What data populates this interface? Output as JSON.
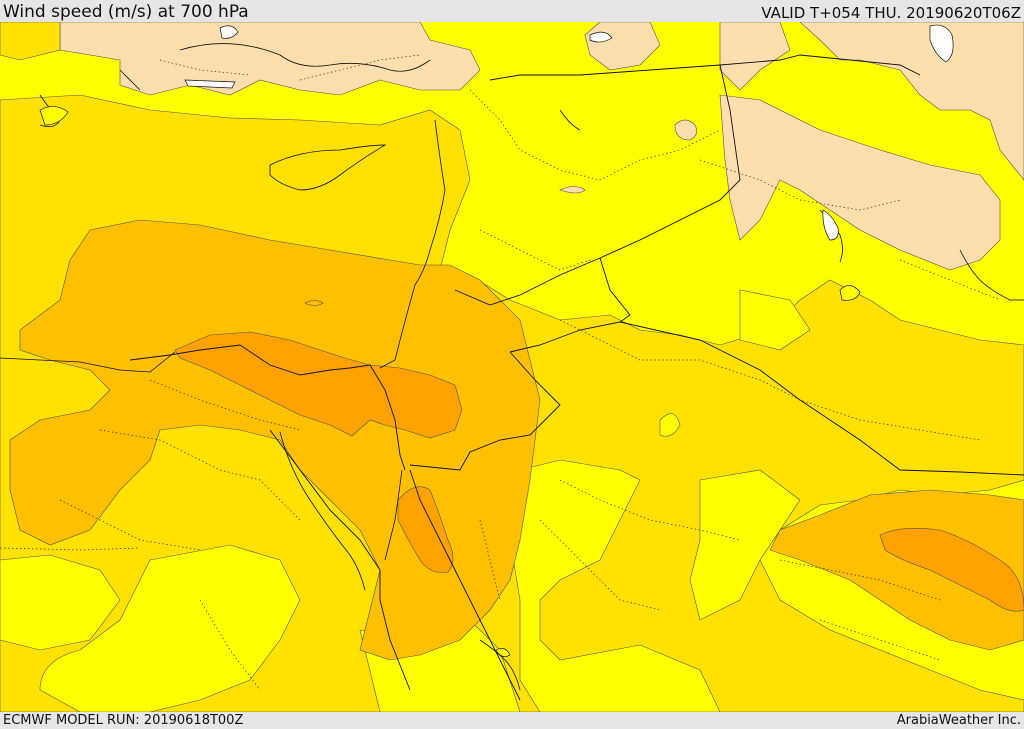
{
  "header": {
    "title": "Wind speed (m/s) at 700 hPa",
    "valid_time": "VALID T+054 THU. 20190620T06Z"
  },
  "footer": {
    "model_run": "ECMWF MODEL RUN: 20190618T00Z",
    "credit": "ArabiaWeather Inc."
  },
  "map": {
    "colors": {
      "level_1": "#ffdead",
      "level_2": "#ffff00",
      "level_3": "#ffe100",
      "level_4": "#ffc000",
      "level_5": "#ffa200",
      "coastline": "#111111",
      "borders": "#222222"
    }
  }
}
